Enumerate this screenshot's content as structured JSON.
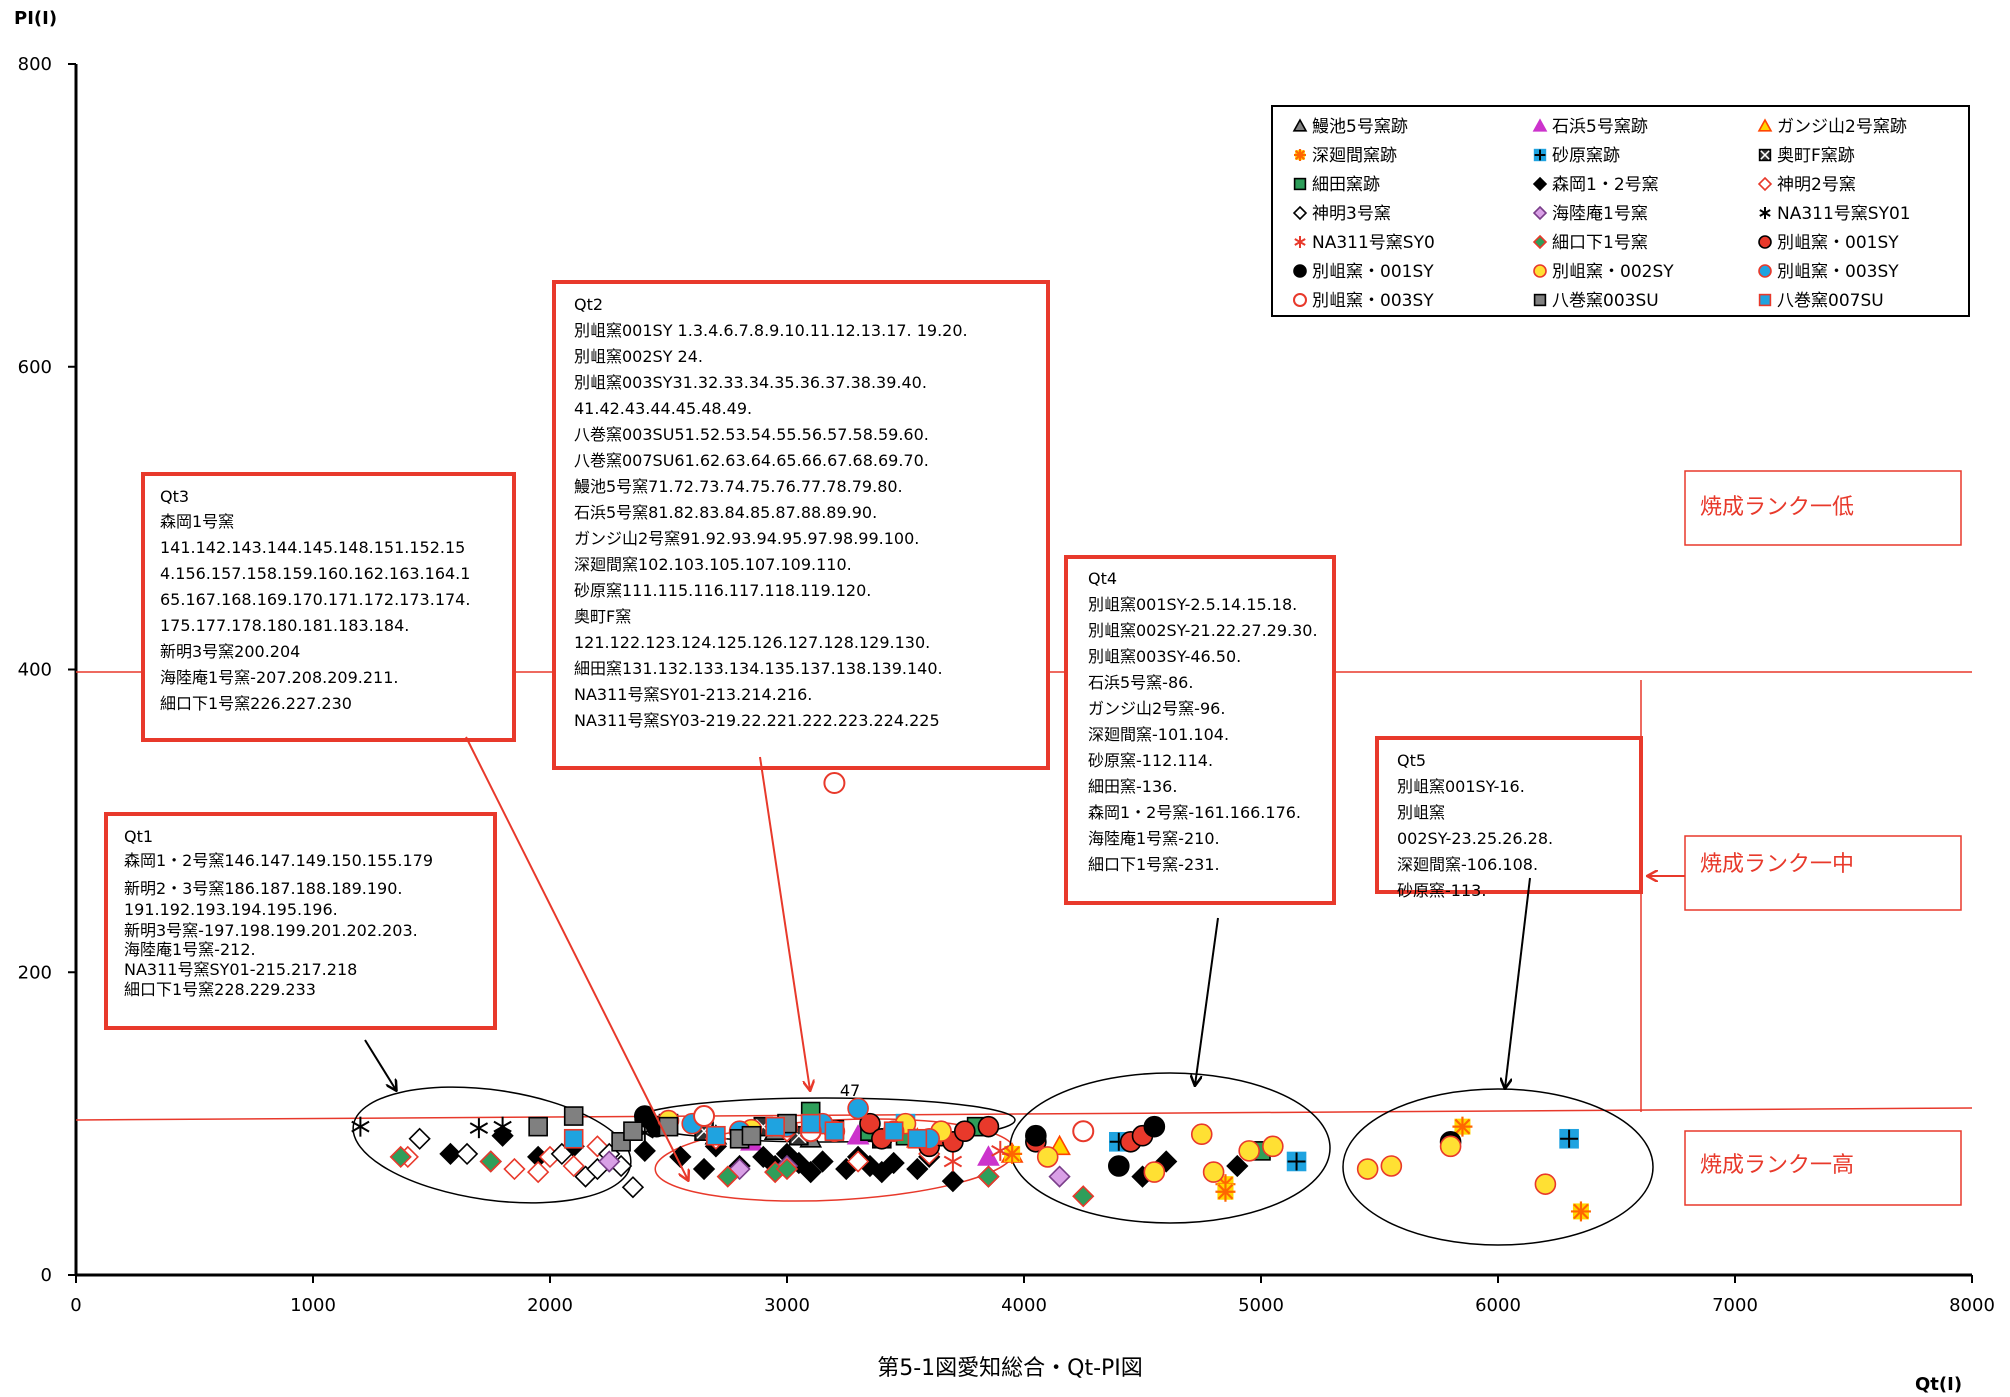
{
  "chart_data": {
    "type": "scatter",
    "title": "",
    "caption": "第5-1図愛知総合・Qt-PI図",
    "xlabel": "Qt(I)",
    "ylabel": "PI(I)",
    "xlim": [
      0,
      8000
    ],
    "ylim": [
      0,
      800
    ],
    "xticks": [
      0,
      1000,
      2000,
      3000,
      4000,
      5000,
      6000,
      7000,
      8000
    ],
    "yticks": [
      0,
      200,
      400,
      600,
      800
    ],
    "grid": false,
    "legend_position": "top-right",
    "series": [
      {
        "name": "鰻池5号窯跡",
        "marker": "triangle",
        "color": "#808080",
        "stroke": "#000000",
        "points": [
          [
            2700,
            92
          ],
          [
            2950,
            95
          ],
          [
            3100,
            90
          ]
        ]
      },
      {
        "name": "石浜5号窯跡",
        "marker": "triangle",
        "color": "#cc33cc",
        "stroke": "#cc33cc",
        "points": [
          [
            3300,
            92
          ],
          [
            3850,
            78
          ],
          [
            2850,
            88
          ]
        ]
      },
      {
        "name": "ガンジ山2号窯跡",
        "marker": "triangle",
        "color": "#ffd700",
        "stroke": "#ff4500",
        "points": [
          [
            4150,
            85
          ],
          [
            3950,
            80
          ],
          [
            3550,
            90
          ]
        ]
      },
      {
        "name": "深廻間窯跡",
        "marker": "asterisk",
        "color": "#ff6600",
        "stroke": "#ffd700",
        "points": [
          [
            4850,
            60
          ],
          [
            4850,
            55
          ],
          [
            5850,
            98
          ],
          [
            6350,
            42
          ],
          [
            3950,
            80
          ]
        ]
      },
      {
        "name": "砂原窯跡",
        "marker": "plus-square",
        "color": "#1fa3e0",
        "stroke": "#000000",
        "points": [
          [
            4400,
            88
          ],
          [
            5150,
            75
          ],
          [
            6300,
            90
          ],
          [
            3500,
            100
          ]
        ]
      },
      {
        "name": "奥町F窯跡",
        "marker": "x-square",
        "color": "#333333",
        "stroke": "#000000",
        "points": [
          [
            2500,
            100
          ],
          [
            2650,
            95
          ],
          [
            2900,
            98
          ],
          [
            3050,
            92
          ],
          [
            3200,
            96
          ],
          [
            3400,
            90
          ]
        ]
      },
      {
        "name": "細田窯跡",
        "marker": "square",
        "color": "#2e9e5a",
        "stroke": "#000000",
        "points": [
          [
            3100,
            108
          ],
          [
            3350,
            95
          ],
          [
            3500,
            92
          ],
          [
            3800,
            98
          ],
          [
            5000,
            82
          ]
        ]
      },
      {
        "name": "森岡1・2号窯",
        "marker": "diamond",
        "color": "#000000",
        "stroke": "#000000",
        "points": [
          [
            1580,
            80
          ],
          [
            1800,
            92
          ],
          [
            1950,
            78
          ],
          [
            2100,
            85
          ],
          [
            2250,
            75
          ],
          [
            2400,
            82
          ],
          [
            2550,
            78
          ],
          [
            2650,
            70
          ],
          [
            2700,
            85
          ],
          [
            2800,
            72
          ],
          [
            2900,
            78
          ],
          [
            2950,
            72
          ],
          [
            3000,
            80
          ],
          [
            3050,
            74
          ],
          [
            3100,
            68
          ],
          [
            3150,
            75
          ],
          [
            3250,
            70
          ],
          [
            3300,
            78
          ],
          [
            3350,
            72
          ],
          [
            3400,
            68
          ],
          [
            3450,
            74
          ],
          [
            3550,
            70
          ],
          [
            3600,
            78
          ],
          [
            3700,
            62
          ],
          [
            3850,
            65
          ],
          [
            4500,
            65
          ],
          [
            4600,
            75
          ],
          [
            4900,
            72
          ]
        ]
      },
      {
        "name": "神明2号窯",
        "marker": "diamond-open",
        "color": "#ffffff",
        "stroke": "#e8392b",
        "points": [
          [
            1400,
            78
          ],
          [
            1850,
            70
          ],
          [
            1950,
            68
          ],
          [
            2000,
            78
          ],
          [
            2100,
            72
          ],
          [
            2200,
            85
          ],
          [
            2700,
            90
          ],
          [
            3000,
            95
          ],
          [
            3300,
            75
          ],
          [
            3600,
            80
          ]
        ]
      },
      {
        "name": "神明3号窯",
        "marker": "diamond-open",
        "color": "#ffffff",
        "stroke": "#000000",
        "points": [
          [
            1450,
            90
          ],
          [
            1650,
            80
          ],
          [
            1750,
            75
          ],
          [
            2050,
            80
          ],
          [
            2150,
            65
          ],
          [
            2200,
            70
          ],
          [
            2250,
            80
          ],
          [
            2300,
            72
          ],
          [
            2350,
            58
          ]
        ]
      },
      {
        "name": "海陸庵1号窯",
        "marker": "diamond",
        "color": "#d9a0e6",
        "stroke": "#7a3e8a",
        "points": [
          [
            2250,
            75
          ],
          [
            2800,
            70
          ],
          [
            3000,
            72
          ],
          [
            4150,
            65
          ]
        ]
      },
      {
        "name": "NA311号窯SY01",
        "marker": "star",
        "color": "#000000",
        "stroke": "#000000",
        "points": [
          [
            1200,
            98
          ],
          [
            1700,
            97
          ],
          [
            1800,
            98
          ],
          [
            2400,
            94
          ]
        ]
      },
      {
        "name": "NA311号窯SY0",
        "marker": "star",
        "color": "#e8392b",
        "stroke": "#e8392b",
        "points": [
          [
            3700,
            75
          ],
          [
            3900,
            82
          ]
        ]
      },
      {
        "name": "細口下1号窯",
        "marker": "diamond",
        "color": "#2e9e5a",
        "stroke": "#e8392b",
        "points": [
          [
            1370,
            78
          ],
          [
            1750,
            75
          ],
          [
            2950,
            68
          ],
          [
            3000,
            70
          ],
          [
            2750,
            65
          ],
          [
            4250,
            52
          ],
          [
            3850,
            65
          ]
        ]
      },
      {
        "name": "別岨窯・001SY",
        "marker": "circle",
        "color": "#e8392b",
        "stroke": "#000000",
        "points": [
          [
            3350,
            100
          ],
          [
            3400,
            90
          ],
          [
            3600,
            85
          ],
          [
            3650,
            92
          ],
          [
            3700,
            88
          ],
          [
            3750,
            95
          ],
          [
            3850,
            98
          ],
          [
            4050,
            88
          ],
          [
            4450,
            88
          ],
          [
            4500,
            92
          ]
        ]
      },
      {
        "name": "別岨窯・001SY",
        "marker": "circle",
        "color": "#000000",
        "stroke": "#000000",
        "points": [
          [
            2400,
            105
          ],
          [
            2450,
            98
          ],
          [
            4050,
            92
          ],
          [
            4400,
            72
          ],
          [
            4550,
            98
          ],
          [
            5800,
            88
          ]
        ]
      },
      {
        "name": "別岨窯・002SY",
        "marker": "circle",
        "color": "#ffe033",
        "stroke": "#e8392b",
        "points": [
          [
            2500,
            102
          ],
          [
            2850,
            96
          ],
          [
            3000,
            98
          ],
          [
            3200,
            95
          ],
          [
            3500,
            100
          ],
          [
            3650,
            95
          ],
          [
            4100,
            78
          ],
          [
            4550,
            68
          ],
          [
            4750,
            93
          ],
          [
            4800,
            68
          ],
          [
            4950,
            82
          ],
          [
            5050,
            85
          ],
          [
            5450,
            70
          ],
          [
            5550,
            72
          ],
          [
            5800,
            85
          ],
          [
            6200,
            60
          ]
        ]
      },
      {
        "name": "別岨窯・003SY",
        "marker": "circle",
        "color": "#1fa3e0",
        "stroke": "#e8392b",
        "points": [
          [
            2600,
            100
          ],
          [
            2800,
            95
          ],
          [
            3000,
            98
          ],
          [
            3150,
            100
          ],
          [
            3300,
            110
          ],
          [
            3450,
            95
          ],
          [
            3600,
            90
          ]
        ]
      },
      {
        "name": "別岨窯・003SY",
        "marker": "circle-open",
        "color": "#ffffff",
        "stroke": "#e8392b",
        "points": [
          [
            3200,
            325
          ],
          [
            2650,
            105
          ],
          [
            3100,
            95
          ],
          [
            4250,
            95
          ]
        ]
      },
      {
        "name": "八巻窯003SU",
        "marker": "square",
        "color": "#808080",
        "stroke": "#000000",
        "points": [
          [
            1950,
            98
          ],
          [
            2100,
            105
          ],
          [
            2300,
            88
          ],
          [
            2350,
            95
          ],
          [
            2500,
            98
          ],
          [
            2800,
            90
          ],
          [
            2850,
            92
          ],
          [
            3000,
            100
          ]
        ]
      },
      {
        "name": "八巻窯007SU",
        "marker": "square",
        "color": "#1fa3e0",
        "stroke": "#e8392b",
        "points": [
          [
            2100,
            90
          ],
          [
            2700,
            92
          ],
          [
            2950,
            98
          ],
          [
            3100,
            100
          ],
          [
            3200,
            95
          ],
          [
            3450,
            95
          ],
          [
            3550,
            90
          ]
        ]
      }
    ],
    "annotations": [
      {
        "id": "qt1",
        "title": "Qt1",
        "lines": [
          "森岡1・2号窯146.147.149.150.155.179",
          "新明2・3号窯186.187.188.189.190.",
          "191.192.193.194.195.196.",
          "新明3号窯-197.198.199.201.202.203.",
          "海陸庵1号窯-212.",
          "NA311号窯SY01-215.217.218",
          "細口下1号窯228.229.233"
        ]
      },
      {
        "id": "qt2",
        "title": "Qt2",
        "lines": [
          "別岨窯001SY 1.3.4.6.7.8.9.10.11.12.13.17. 19.20.",
          "別岨窯002SY 24.",
          "別岨窯003SY31.32.33.34.35.36.37.38.39.40.",
          "41.42.43.44.45.48.49.",
          "八巻窯003SU51.52.53.54.55.56.57.58.59.60.",
          "八巻窯007SU61.62.63.64.65.66.67.68.69.70.",
          "鰻池5号窯71.72.73.74.75.76.77.78.79.80.",
          "石浜5号窯81.82.83.84.85.87.88.89.90.",
          "ガンジ山2号窯91.92.93.94.95.97.98.99.100.",
          "深廻間窯102.103.105.107.109.110.",
          "砂原窯111.115.116.117.118.119.120.",
          "奥町F窯",
          "121.122.123.124.125.126.127.128.129.130.",
          "細田窯131.132.133.134.135.137.138.139.140.",
          "NA311号窯SY01-213.214.216.",
          "NA311号窯SY03-219.22.221.222.223.224.225"
        ]
      },
      {
        "id": "qt3",
        "title": "Qt3",
        "lines": [
          "森岡1号窯",
          "141.142.143.144.145.148.151.152.15",
          "4.156.157.158.159.160.162.163.164.1",
          "65.167.168.169.170.171.172.173.174.",
          "175.177.178.180.181.183.184.",
          "新明3号窯200.204",
          "海陸庵1号窯-207.208.209.211.",
          "細口下1号窯226.227.230"
        ]
      },
      {
        "id": "qt4",
        "title": "Qt4",
        "lines": [
          "別岨窯001SY-2.5.14.15.18.",
          "別岨窯002SY-21.22.27.29.30.",
          "別岨窯003SY-46.50.",
          "石浜5号窯-86.",
          "ガンジ山2号窯-96.",
          "深廻間窯-101.104.",
          "砂原窯-112.114.",
          "細田窯-136.",
          "森岡1・2号窯-161.166.176.",
          "海陸庵1号窯-210.",
          "細口下1号窯-231."
        ]
      },
      {
        "id": "qt5",
        "title": "Qt5",
        "lines": [
          "別岨窯001SY-16.",
          "別岨窯",
          "002SY-23.25.26.28.",
          "深廻間窯-106.108.",
          "砂原窯-113."
        ]
      }
    ],
    "point_label": {
      "text": "47",
      "x": 3200,
      "y": 325
    },
    "rank_labels": [
      "焼成ランク一低",
      "焼成ランク一中",
      "焼成ランク一高"
    ]
  }
}
